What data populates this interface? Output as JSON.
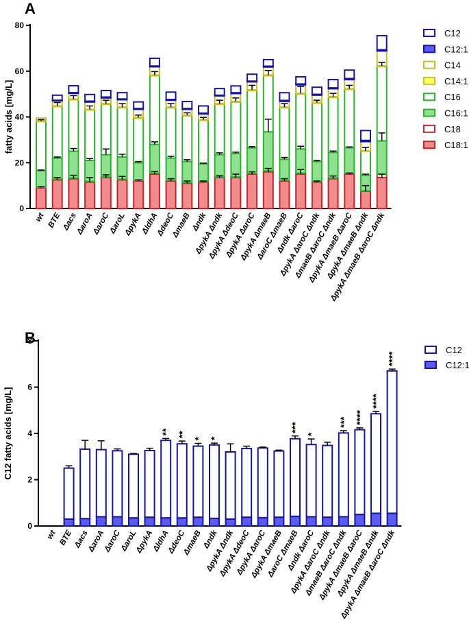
{
  "chart_data": [
    {
      "panel": "A",
      "type": "bar",
      "stacked": true,
      "ylabel": "fatty acids [mg/L]",
      "xlabel": "",
      "ylim": [
        0,
        80
      ],
      "yticks": [
        0,
        20,
        40,
        60,
        80
      ],
      "categories": [
        "wt",
        "BTE",
        "Δacs",
        "ΔaroA",
        "ΔaroC",
        "ΔaroL",
        "ΔpykA",
        "ΔldhA",
        "ΔdeoC",
        "ΔmaeB",
        "Δndk",
        "ΔpykA Δndk",
        "ΔpykA ΔdeoC",
        "ΔpykA ΔaroC",
        "ΔpykA ΔmaeB",
        "ΔaroC ΔmaeB",
        "Δndk ΔaroC",
        "ΔpykA ΔaroC Δndk",
        "ΔmaeB ΔaroC Δndk",
        "ΔpykA ΔmaeB ΔaroC",
        "ΔpykA ΔmaeB Δndk",
        "ΔpykA ΔmaeB ΔaroC Δndk"
      ],
      "series": [
        {
          "name": "C18:1",
          "fill": "#f28b8b",
          "stroke": "#c0272d",
          "values": [
            9,
            12.5,
            13,
            11.5,
            13.5,
            12.5,
            12,
            15,
            12,
            11,
            11.5,
            13.5,
            13.5,
            15,
            16,
            12,
            15,
            11.5,
            13,
            15,
            7.5,
            13.5
          ]
        },
        {
          "name": "C18",
          "fill": "#ffffff",
          "stroke": "#c0272d",
          "values": [
            0.3,
            0.3,
            0.3,
            0.3,
            0.3,
            0.3,
            0.3,
            0.4,
            0.3,
            0.3,
            0.3,
            0.3,
            0.3,
            0.3,
            0.4,
            0.3,
            0.4,
            0.3,
            0.3,
            0.3,
            0.2,
            1.5
          ]
        },
        {
          "name": "C16:1",
          "fill": "#8fe08f",
          "stroke": "#2ab52a",
          "values": [
            7.2,
            9.2,
            11.7,
            9.2,
            9.7,
            9.7,
            7.7,
            12.6,
            9.7,
            9.2,
            7.7,
            9.7,
            10.2,
            11.2,
            17.1,
            9.2,
            10.6,
            8.7,
            11.2,
            11.2,
            6.8,
            14.5
          ]
        },
        {
          "name": "C16",
          "fill": "#ffffff",
          "stroke": "#2ab52a",
          "values": [
            21.5,
            22.5,
            22.5,
            22,
            22,
            21.5,
            19.5,
            30,
            22,
            20,
            19,
            22,
            22.5,
            25,
            24.5,
            22.5,
            24,
            25.5,
            24,
            25.5,
            10.5,
            32.5
          ]
        },
        {
          "name": "C14:1",
          "fill": "#ffff66",
          "stroke": "#c8c020",
          "values": [
            0.3,
            0.3,
            0.3,
            0.3,
            0.3,
            0.3,
            0.3,
            0.3,
            0.3,
            0.3,
            0.3,
            0.3,
            0.3,
            0.3,
            0.3,
            0.3,
            0.3,
            0.3,
            0.3,
            0.3,
            0.2,
            0.3
          ]
        },
        {
          "name": "C14",
          "fill": "#ffffff",
          "stroke": "#c8c020",
          "values": [
            1.2,
            2.2,
            2.5,
            3.2,
            2.5,
            3.2,
            3.5,
            3.6,
            3,
            2.5,
            2.5,
            3.4,
            3.4,
            3.5,
            3.5,
            2.5,
            3.7,
            3.2,
            3.5,
            4,
            4,
            6.5
          ]
        },
        {
          "name": "C12:1",
          "fill": "#5b5bef",
          "stroke": "#1515a8",
          "values": [
            0,
            0.3,
            0.32,
            0.4,
            0.4,
            0.35,
            0.38,
            0.35,
            0.35,
            0.38,
            0.33,
            0.3,
            0.38,
            0.36,
            0.38,
            0.42,
            0.4,
            0.38,
            0.4,
            0.5,
            0.55,
            0.55
          ]
        },
        {
          "name": "C12",
          "fill": "#ffffff",
          "stroke": "#1515a8",
          "values": [
            0,
            2.2,
            3,
            2.9,
            2.85,
            2.75,
            2.88,
            3.35,
            3.2,
            3.07,
            3.17,
            2.9,
            2.97,
            3.01,
            2.86,
            3.35,
            3.12,
            3.1,
            3.62,
            3.66,
            4.3,
            6.15
          ]
        }
      ],
      "legend": [
        "C12",
        "C12:1",
        "C14",
        "C14:1",
        "C16",
        "C16:1",
        "C18",
        "C18:1"
      ]
    },
    {
      "panel": "B",
      "type": "bar",
      "stacked": true,
      "ylabel": "C12 fatty acids [mg/L]",
      "xlabel": "",
      "ylim": [
        0,
        8
      ],
      "yticks": [
        0,
        2,
        4,
        6,
        8
      ],
      "categories": [
        "wt",
        "BTE",
        "Δacs",
        "ΔaroA",
        "ΔaroC",
        "ΔaroL",
        "ΔpykA",
        "ΔldhA",
        "ΔdeoC",
        "ΔmaeB",
        "Δndk",
        "ΔpykA Δndk",
        "ΔpykA ΔdeoC",
        "ΔpykA ΔaroC",
        "ΔpykA ΔmaeB",
        "ΔaroC ΔmaeB",
        "Δndk ΔaroC",
        "ΔpykA ΔaroC Δndk",
        "ΔmaeB ΔaroC Δndk",
        "ΔpykA ΔmaeB ΔaroC",
        "ΔpykA ΔmaeB Δndk",
        "ΔpykA ΔmaeB ΔaroC Δndk"
      ],
      "series": [
        {
          "name": "C12:1",
          "fill": "#5b5bef",
          "stroke": "#1515a8",
          "values": [
            0,
            0.3,
            0.32,
            0.4,
            0.4,
            0.35,
            0.38,
            0.35,
            0.35,
            0.38,
            0.33,
            0.3,
            0.38,
            0.36,
            0.38,
            0.42,
            0.4,
            0.38,
            0.4,
            0.5,
            0.55,
            0.55
          ]
        },
        {
          "name": "C12",
          "fill": "#ffffff",
          "stroke": "#1515a8",
          "values": [
            0,
            2.2,
            3,
            2.9,
            2.85,
            2.75,
            2.88,
            3.35,
            3.2,
            3.07,
            3.17,
            2.9,
            2.97,
            3.01,
            2.86,
            3.35,
            3.12,
            3.1,
            3.62,
            3.66,
            4.3,
            6.15
          ]
        }
      ],
      "totals": [
        0,
        2.5,
        3.3,
        3.3,
        3.25,
        3.1,
        3.26,
        3.7,
        3.55,
        3.45,
        3.5,
        3.2,
        3.35,
        3.37,
        3.24,
        3.77,
        3.52,
        3.48,
        4.02,
        4.16,
        4.85,
        6.7
      ],
      "errors": [
        0,
        0.1,
        0.4,
        0.38,
        0.08,
        0.03,
        0.1,
        0.08,
        0.12,
        0.12,
        0.08,
        0.35,
        0.1,
        0.04,
        0.04,
        0.12,
        0.24,
        0.14,
        0.1,
        0.08,
        0.1,
        0.08
      ],
      "significance": [
        "",
        "",
        "",
        "",
        "",
        "",
        "",
        "**",
        "**",
        "*",
        "*",
        "",
        "",
        "",
        "",
        "***",
        "*",
        "",
        "***",
        "****",
        "****",
        "****"
      ],
      "legend": [
        "C12",
        "C12:1"
      ]
    }
  ],
  "panel_a_errors": [
    0.5,
    1.5,
    1.5,
    1.5,
    1.5,
    1.5,
    1,
    1.5,
    1.5,
    1,
    1,
    1.5,
    1.5,
    1.5,
    2,
    1.5,
    3,
    1.5,
    1.5,
    1.5,
    1.5,
    1.5
  ],
  "panel_a_inner_errors": [
    [
      0.5,
      1,
      1.5,
      2,
      1.2,
      1.5,
      0.5,
      1.2,
      1,
      1,
      0.5,
      0.8,
      1.5,
      1,
      1.5,
      1,
      2,
      0.5,
      1.2,
      0.5,
      2.5,
      1.5
    ],
    [
      0.3,
      0.5,
      1.2,
      0.8,
      2.5,
      1.2,
      0.5,
      1.1,
      0.8,
      0.8,
      0.3,
      0.8,
      0.6,
      0.5,
      5.5,
      0.8,
      1.2,
      0.5,
      0.6,
      0.4,
      0.5,
      3.5
    ],
    [
      0.5,
      1.5,
      1.5,
      1.5,
      1.5,
      1.5,
      1,
      1.5,
      1.5,
      1,
      1,
      1.5,
      1.5,
      2,
      2,
      1.5,
      3,
      1,
      1.5,
      1.5,
      1.5,
      1.5
    ]
  ]
}
